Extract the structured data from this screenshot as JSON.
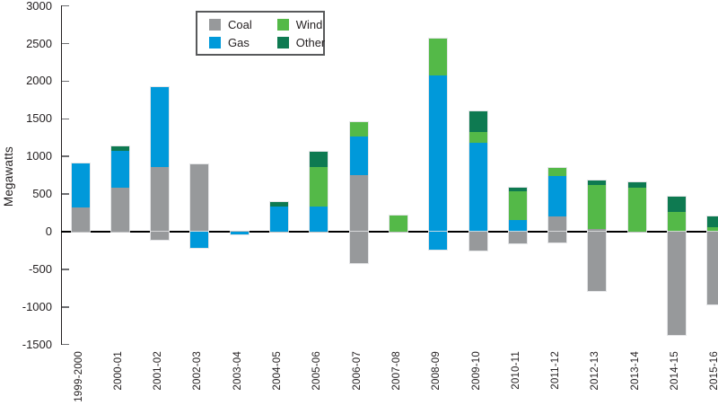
{
  "chart_data": {
    "type": "bar",
    "stacked": true,
    "title": "",
    "ylabel": "Megawatts",
    "ylim": [
      -1500,
      3000
    ],
    "grid": false,
    "legend_position": "top-center-inside-box",
    "yticks": [
      {
        "value": 3000,
        "label": "3000"
      },
      {
        "value": 2500,
        "label": "2500"
      },
      {
        "value": 2000,
        "label": "2000"
      },
      {
        "value": 1500,
        "label": "1500"
      },
      {
        "value": 1000,
        "label": "1000"
      },
      {
        "value": 500,
        "label": "500"
      },
      {
        "value": 0,
        "label": "0"
      },
      {
        "value": -500,
        "label": "-500"
      },
      {
        "value": -1000,
        "label": "-1000"
      },
      {
        "value": -1500,
        "label": "-1500"
      }
    ],
    "categories": [
      "1999-2000",
      "2000-01",
      "2001-02",
      "2002-03",
      "2003-04",
      "2004-05",
      "2005-06",
      "2006-07",
      "2007-08",
      "2008-09",
      "2009-10",
      "2010-11",
      "2011-12",
      "2012-13",
      "2013-14",
      "2014-15",
      "2015-16"
    ],
    "stack_order": [
      "Coal",
      "Gas",
      "Wind",
      "Other"
    ],
    "series": [
      {
        "name": "Coal",
        "color": "#97999b",
        "positive": [
          320,
          580,
          860,
          890,
          0,
          0,
          0,
          750,
          0,
          0,
          0,
          0,
          200,
          30,
          0,
          0,
          0
        ],
        "negative": [
          0,
          0,
          -110,
          0,
          0,
          0,
          0,
          -420,
          0,
          0,
          -255,
          -150,
          -140,
          -790,
          0,
          -1370,
          -970
        ]
      },
      {
        "name": "Gas",
        "color": "#0099da",
        "positive": [
          590,
          495,
          1060,
          0,
          0,
          335,
          335,
          520,
          0,
          2080,
          1185,
          155,
          545,
          0,
          0,
          0,
          0
        ],
        "negative": [
          0,
          0,
          0,
          -210,
          -35,
          0,
          0,
          0,
          0,
          -240,
          0,
          0,
          0,
          0,
          0,
          0,
          0
        ]
      },
      {
        "name": "Wind",
        "color": "#54b948",
        "positive": [
          0,
          0,
          0,
          0,
          0,
          0,
          530,
          180,
          220,
          480,
          145,
          380,
          100,
          590,
          580,
          265,
          60
        ],
        "negative": [
          0,
          0,
          0,
          0,
          0,
          0,
          0,
          0,
          0,
          0,
          0,
          0,
          0,
          0,
          0,
          0,
          0
        ]
      },
      {
        "name": "Other",
        "color": "#0e7a51",
        "positive": [
          0,
          55,
          0,
          0,
          0,
          55,
          195,
          0,
          0,
          0,
          275,
          55,
          0,
          65,
          80,
          200,
          145
        ],
        "negative": [
          0,
          0,
          0,
          0,
          0,
          0,
          0,
          0,
          0,
          0,
          0,
          0,
          0,
          0,
          0,
          0,
          0
        ]
      }
    ],
    "legend": {
      "columns": [
        [
          "Coal",
          "Gas"
        ],
        [
          "Wind",
          "Other"
        ]
      ]
    }
  }
}
